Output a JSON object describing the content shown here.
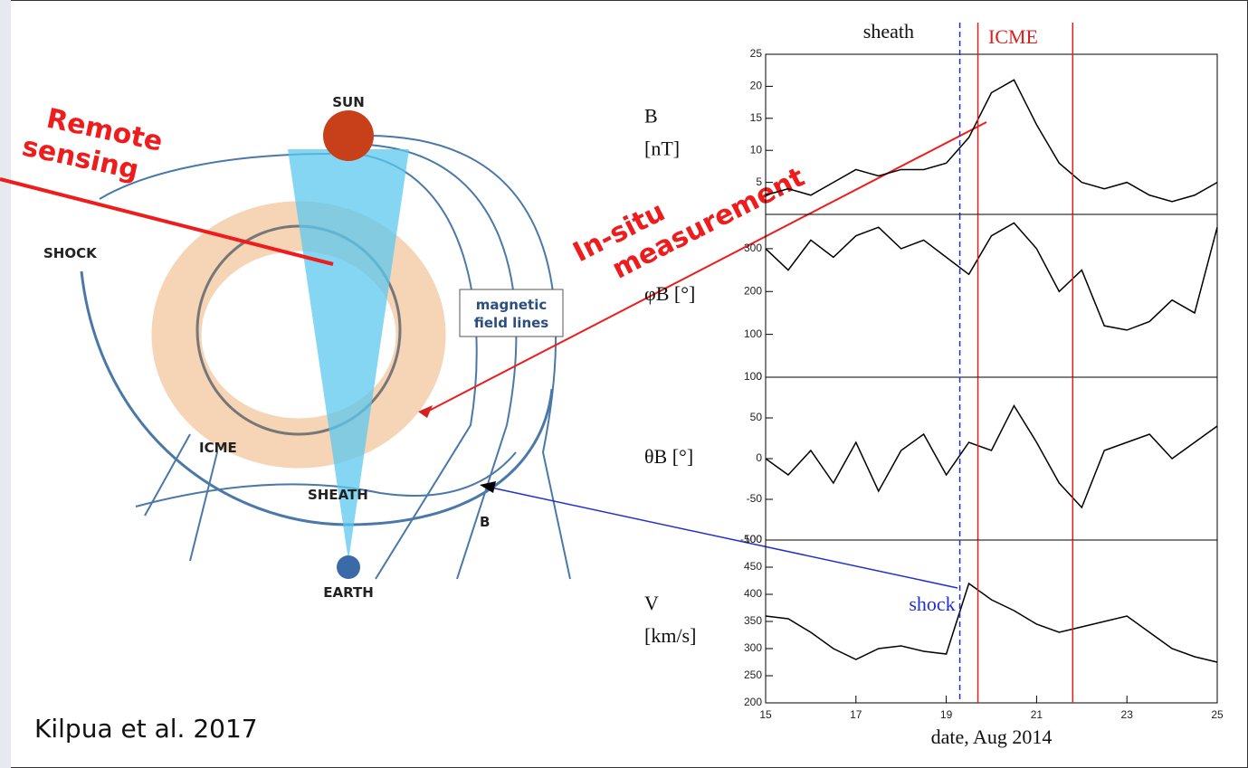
{
  "diagram": {
    "sun": "SUN",
    "earth": "EARTH",
    "shock": "SHOCK",
    "icme": "ICME",
    "sheath": "SHEATH",
    "b": "B",
    "field_lines": [
      "magnetic",
      "field lines"
    ],
    "remote": [
      "Remote",
      "sensing"
    ],
    "insitu": [
      "In-situ",
      "measurement"
    ],
    "citation": "Kilpua et al. 2017",
    "sheath_label": "sheath",
    "icme_label": "ICME",
    "shock_label": "shock"
  },
  "chart_data": [
    {
      "type": "line",
      "ylabel": [
        "B",
        "[nT]"
      ],
      "x": [
        15,
        15.5,
        16,
        16.5,
        17,
        17.5,
        18,
        18.5,
        19,
        19.5,
        20,
        20.5,
        21,
        21.5,
        22,
        22.5,
        23,
        23.5,
        24,
        24.5,
        25
      ],
      "values": [
        3,
        4,
        3,
        5,
        7,
        6,
        7,
        7,
        8,
        12,
        19,
        21,
        14,
        8,
        5,
        4,
        5,
        3,
        2,
        3,
        5
      ],
      "xlim": [
        15,
        25
      ],
      "ylim": [
        0,
        25
      ],
      "yticks": [
        5,
        10,
        15,
        20,
        25
      ]
    },
    {
      "type": "line",
      "ylabel": [
        "φB [°]"
      ],
      "x": [
        15,
        15.5,
        16,
        16.5,
        17,
        17.5,
        18,
        18.5,
        19,
        19.5,
        20,
        20.5,
        21,
        21.5,
        22,
        22.5,
        23,
        23.5,
        24,
        24.5,
        25
      ],
      "values": [
        300,
        250,
        320,
        280,
        330,
        350,
        300,
        320,
        280,
        240,
        330,
        360,
        300,
        200,
        250,
        120,
        110,
        130,
        180,
        150,
        350
      ],
      "xlim": [
        15,
        25
      ],
      "ylim": [
        0,
        380
      ],
      "yticks": [
        0,
        100,
        200,
        300
      ]
    },
    {
      "type": "line",
      "ylabel": [
        "θB [°]"
      ],
      "x": [
        15,
        15.5,
        16,
        16.5,
        17,
        17.5,
        18,
        18.5,
        19,
        19.5,
        20,
        20.5,
        21,
        21.5,
        22,
        22.5,
        23,
        23.5,
        24,
        24.5,
        25
      ],
      "values": [
        0,
        -20,
        10,
        -30,
        20,
        -40,
        10,
        30,
        -20,
        20,
        10,
        65,
        20,
        -30,
        -60,
        10,
        20,
        30,
        0,
        20,
        40
      ],
      "xlim": [
        15,
        25
      ],
      "ylim": [
        -100,
        100
      ],
      "yticks": [
        -100,
        -50,
        0,
        50,
        100
      ]
    },
    {
      "type": "line",
      "ylabel": [
        "V",
        "[km/s]"
      ],
      "x": [
        15,
        15.5,
        16,
        16.5,
        17,
        17.5,
        18,
        18.5,
        19,
        19.5,
        20,
        20.5,
        21,
        21.5,
        22,
        22.5,
        23,
        23.5,
        24,
        24.5,
        25
      ],
      "values": [
        360,
        355,
        330,
        300,
        280,
        300,
        305,
        295,
        290,
        420,
        390,
        370,
        345,
        330,
        340,
        350,
        360,
        330,
        300,
        285,
        275
      ],
      "xlim": [
        15,
        25
      ],
      "ylim": [
        200,
        500
      ],
      "yticks": [
        200,
        250,
        300,
        350,
        400,
        450,
        500
      ],
      "xticks": [
        15,
        17,
        19,
        21,
        23,
        25
      ],
      "xlabel": "date, Aug 2014"
    }
  ],
  "events": [
    {
      "value": 19.3,
      "color": "#2030d0",
      "dashed": true
    },
    {
      "value": 19.7,
      "color": "#e02020",
      "dashed": false
    },
    {
      "value": 21.8,
      "color": "#e02020",
      "dashed": false
    }
  ]
}
